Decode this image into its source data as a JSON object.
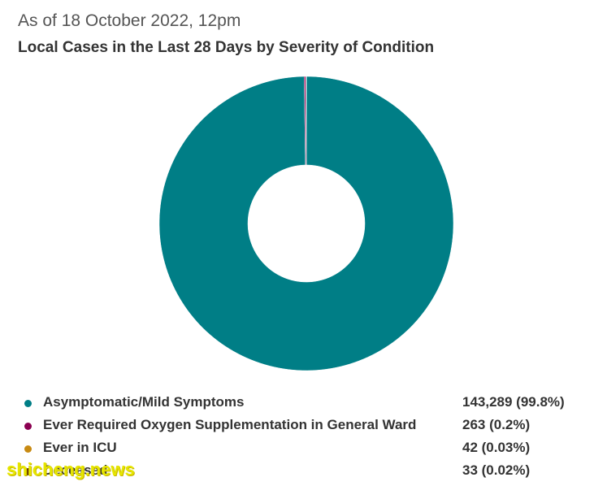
{
  "header": {
    "subtitle": "As of 18 October 2022, 12pm",
    "title": "Local Cases in the Last 28 Days by Severity of Condition"
  },
  "chart_data": {
    "type": "pie",
    "subtype": "donut",
    "title": "Local Cases in the Last 28 Days by Severity of Condition",
    "subtitle": "As of 18 October 2022, 12pm",
    "legend_position": "bottom",
    "series": [
      {
        "name": "Asymptomatic/Mild Symptoms",
        "value": 143289,
        "value_label": "143,289 (99.8%)",
        "color": "#007e86"
      },
      {
        "name": "Ever Required Oxygen Supplementation in General Ward",
        "value": 263,
        "value_label": "263 (0.2%)",
        "color": "#8b0051"
      },
      {
        "name": "Ever in ICU",
        "value": 42,
        "value_label": "42 (0.03%)",
        "color": "#c88a12"
      },
      {
        "name": "Deceased",
        "value": 33,
        "value_label": "33 (0.02%)",
        "color": "#5a2a00"
      }
    ]
  },
  "watermark": {
    "text": "shicheng.news"
  }
}
